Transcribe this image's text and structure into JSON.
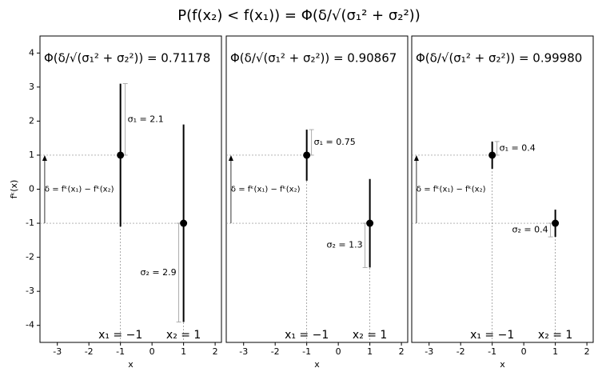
{
  "title": "P(f(x₂) < f(x₁)) = Φ(δ/√(σ₁² + σ₂²))",
  "chart_data": [
    {
      "type": "errorbar",
      "x": [
        -1,
        1
      ],
      "values": [
        1,
        -1
      ],
      "errors": [
        2.1,
        2.9
      ],
      "error_labels": [
        "σ₁ = 2.1",
        "σ₂ = 2.9"
      ],
      "point_labels": [
        "x₁ = −1",
        "x₂ = 1"
      ],
      "delta_label": "δ = fᵏ(x₁) − fᵏ(x₂)",
      "probability_label": "Φ(δ/√(σ₁² + σ₂²)) = 0.71178",
      "xlabel": "x",
      "ylabel": "fᵏ(x)",
      "xlim": [
        -3.55,
        2.2
      ],
      "ylim": [
        -4.5,
        4.5
      ],
      "xticks": [
        -3,
        -2,
        -1,
        0,
        1,
        2
      ],
      "yticks": [
        -4,
        -3,
        -2,
        -1,
        0,
        1,
        2,
        3,
        4
      ],
      "color": "#000000"
    },
    {
      "type": "errorbar",
      "x": [
        -1,
        1
      ],
      "values": [
        1,
        -1
      ],
      "errors": [
        0.75,
        1.3
      ],
      "error_labels": [
        "σ₁ = 0.75",
        "σ₂ = 1.3"
      ],
      "point_labels": [
        "x₁ = −1",
        "x₂ = 1"
      ],
      "delta_label": "δ = fᵏ(x₁) − fᵏ(x₂)",
      "probability_label": "Φ(δ/√(σ₁² + σ₂²)) = 0.90867",
      "xlabel": "x",
      "xlim": [
        -3.55,
        2.2
      ],
      "ylim": [
        -4.5,
        4.5
      ],
      "xticks": [
        -3,
        -2,
        -1,
        0,
        1,
        2
      ],
      "color": "#000000"
    },
    {
      "type": "errorbar",
      "x": [
        -1,
        1
      ],
      "values": [
        1,
        -1
      ],
      "errors": [
        0.4,
        0.4
      ],
      "error_labels": [
        "σ₁ = 0.4",
        "σ₂ = 0.4"
      ],
      "point_labels": [
        "x₁ = −1",
        "x₂ = 1"
      ],
      "delta_label": "δ = fᵏ(x₁) − fᵏ(x₂)",
      "probability_label": "Φ(δ/√(σ₁² + σ₂²)) = 0.99980",
      "xlabel": "x",
      "xlim": [
        -3.55,
        2.2
      ],
      "ylim": [
        -4.5,
        4.5
      ],
      "xticks": [
        -3,
        -2,
        -1,
        0,
        1,
        2
      ],
      "color": "#000000"
    }
  ]
}
